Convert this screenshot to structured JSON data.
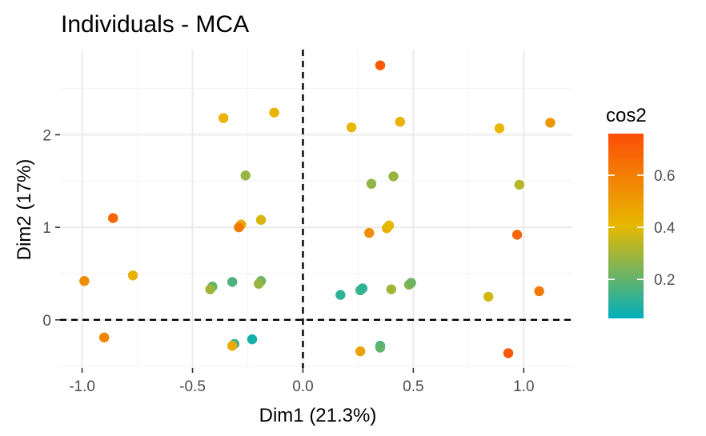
{
  "chart_data": {
    "type": "scatter",
    "title": "Individuals - MCA",
    "xlabel": "Dim1 (21.3%)",
    "ylabel": "Dim2 (17%)",
    "xlim": [
      -1.1,
      1.22
    ],
    "ylim": [
      -0.52,
      2.92
    ],
    "xticks": [
      -1.0,
      -0.5,
      0.0,
      0.5,
      1.0
    ],
    "xtick_labels": [
      "-1.0",
      "-0.5",
      "0.0",
      "0.5",
      "1.0"
    ],
    "yticks": [
      0,
      1,
      2
    ],
    "ytick_labels": [
      "0",
      "1",
      "2"
    ],
    "grid": true,
    "reference_lines": {
      "x": 0,
      "y": 0,
      "style": "dashed"
    },
    "color_variable": "cos2",
    "legend": {
      "title": "cos2",
      "placement": "right",
      "range": [
        0.05,
        0.76
      ],
      "labels": [
        "0.2",
        "0.4",
        "0.6"
      ],
      "label_values": [
        0.2,
        0.4,
        0.6
      ],
      "colors": [
        "#00AFBB",
        "#E7B800",
        "#FC4E07"
      ]
    },
    "points": [
      {
        "x": 0.35,
        "y": 2.75,
        "cos2": 0.72
      },
      {
        "x": -0.36,
        "y": 2.18,
        "cos2": 0.42
      },
      {
        "x": -0.13,
        "y": 2.24,
        "cos2": 0.42
      },
      {
        "x": 0.22,
        "y": 2.08,
        "cos2": 0.41
      },
      {
        "x": 0.44,
        "y": 2.14,
        "cos2": 0.43
      },
      {
        "x": 0.89,
        "y": 2.07,
        "cos2": 0.41
      },
      {
        "x": 1.12,
        "y": 2.13,
        "cos2": 0.52
      },
      {
        "x": -0.26,
        "y": 1.56,
        "cos2": 0.28
      },
      {
        "x": 0.31,
        "y": 1.47,
        "cos2": 0.27
      },
      {
        "x": 0.41,
        "y": 1.55,
        "cos2": 0.28
      },
      {
        "x": 0.98,
        "y": 1.46,
        "cos2": 0.33
      },
      {
        "x": -0.86,
        "y": 1.1,
        "cos2": 0.68
      },
      {
        "x": -0.28,
        "y": 1.03,
        "cos2": 0.45
      },
      {
        "x": -0.29,
        "y": 1.0,
        "cos2": 0.62
      },
      {
        "x": -0.19,
        "y": 1.08,
        "cos2": 0.38
      },
      {
        "x": 0.3,
        "y": 0.94,
        "cos2": 0.55
      },
      {
        "x": 0.38,
        "y": 0.99,
        "cos2": 0.44
      },
      {
        "x": 0.39,
        "y": 1.02,
        "cos2": 0.4
      },
      {
        "x": 0.97,
        "y": 0.92,
        "cos2": 0.68
      },
      {
        "x": -0.99,
        "y": 0.42,
        "cos2": 0.55
      },
      {
        "x": -0.77,
        "y": 0.48,
        "cos2": 0.43
      },
      {
        "x": -0.41,
        "y": 0.36,
        "cos2": 0.2
      },
      {
        "x": -0.42,
        "y": 0.33,
        "cos2": 0.3
      },
      {
        "x": -0.32,
        "y": 0.41,
        "cos2": 0.17
      },
      {
        "x": -0.19,
        "y": 0.42,
        "cos2": 0.22
      },
      {
        "x": -0.2,
        "y": 0.39,
        "cos2": 0.28
      },
      {
        "x": 0.17,
        "y": 0.27,
        "cos2": 0.12
      },
      {
        "x": 0.26,
        "y": 0.32,
        "cos2": 0.15
      },
      {
        "x": 0.27,
        "y": 0.34,
        "cos2": 0.12
      },
      {
        "x": 0.4,
        "y": 0.33,
        "cos2": 0.3
      },
      {
        "x": 0.48,
        "y": 0.38,
        "cos2": 0.27
      },
      {
        "x": 0.49,
        "y": 0.4,
        "cos2": 0.22
      },
      {
        "x": 0.84,
        "y": 0.25,
        "cos2": 0.37
      },
      {
        "x": 1.07,
        "y": 0.31,
        "cos2": 0.62
      },
      {
        "x": -0.9,
        "y": -0.19,
        "cos2": 0.58
      },
      {
        "x": -0.31,
        "y": -0.26,
        "cos2": 0.14
      },
      {
        "x": -0.32,
        "y": -0.28,
        "cos2": 0.45
      },
      {
        "x": -0.23,
        "y": -0.21,
        "cos2": 0.08
      },
      {
        "x": 0.26,
        "y": -0.34,
        "cos2": 0.48
      },
      {
        "x": 0.35,
        "y": -0.28,
        "cos2": 0.15
      },
      {
        "x": 0.35,
        "y": -0.3,
        "cos2": 0.2
      },
      {
        "x": 0.93,
        "y": -0.36,
        "cos2": 0.73
      }
    ]
  }
}
